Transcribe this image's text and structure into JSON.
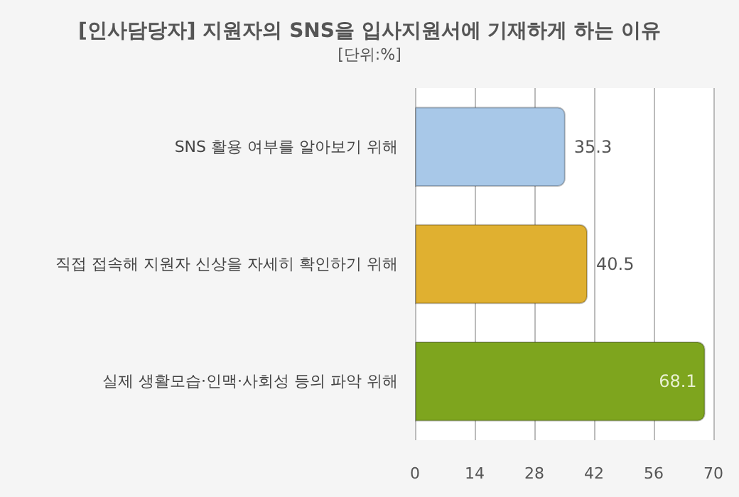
{
  "chart_data": {
    "type": "bar",
    "orientation": "horizontal",
    "title": "[인사담당자] 지원자의 SNS을 입사지원서에 기재하게 하는 이유",
    "subtitle": "[단위:%]",
    "categories": [
      "SNS 활용 여부를 알아보기 위해",
      "직접 접속해 지원자 신상을 자세히 확인하기 위해",
      "실제 생활모습·인맥·사회성 등의 파악 위해"
    ],
    "values": [
      35.3,
      40.5,
      68.1
    ],
    "colors": [
      "#a8c8e8",
      "#e0b030",
      "#7ea51e"
    ],
    "xlim": [
      0,
      70
    ],
    "xticks": [
      0,
      14,
      28,
      42,
      56,
      70
    ],
    "grid": "x",
    "data_labels": true
  }
}
